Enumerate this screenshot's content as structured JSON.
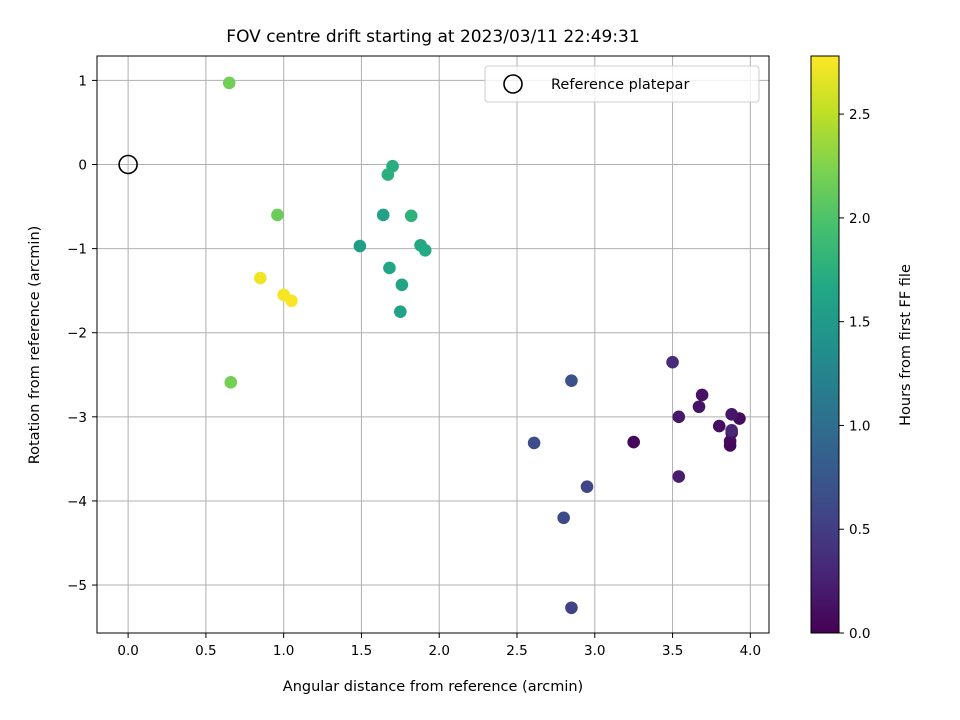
{
  "chart_data": {
    "type": "scatter",
    "title": "FOV centre drift starting at 2023/03/11 22:49:31",
    "xlabel": "Angular distance from reference (arcmin)",
    "ylabel": "Rotation from reference (arcmin)",
    "xlim": [
      -0.2,
      4.12
    ],
    "ylim": [
      -5.57,
      1.29
    ],
    "xticks": [
      0.0,
      0.5,
      1.0,
      1.5,
      2.0,
      2.5,
      3.0,
      3.5,
      4.0
    ],
    "yticks": [
      1,
      0,
      -1,
      -2,
      -3,
      -4,
      -5
    ],
    "xtick_labels": [
      "0.0",
      "0.5",
      "1.0",
      "1.5",
      "2.0",
      "2.5",
      "3.0",
      "3.5",
      "4.0"
    ],
    "ytick_labels": [
      "1",
      "0",
      "−1",
      "−2",
      "−3",
      "−4",
      "−5"
    ],
    "grid": true,
    "legend": {
      "position": "top-right",
      "label": "Reference platepar"
    },
    "reference_point": {
      "x": 0.0,
      "y": 0.0
    },
    "colorbar": {
      "label": "Hours from first FF file",
      "min": 0.0,
      "max": 2.78,
      "colormap": "viridis",
      "ticks": [
        0.0,
        0.5,
        1.0,
        1.5,
        2.0,
        2.5
      ],
      "tick_labels": [
        "0.0",
        "0.5",
        "1.0",
        "1.5",
        "2.0",
        "2.5"
      ]
    },
    "points": [
      {
        "x": 3.25,
        "y": -3.3,
        "c": 0.05
      },
      {
        "x": 3.87,
        "y": -3.34,
        "c": 0.05
      },
      {
        "x": 3.87,
        "y": -3.29,
        "c": 0.07
      },
      {
        "x": 3.93,
        "y": -3.02,
        "c": 0.08
      },
      {
        "x": 3.8,
        "y": -3.11,
        "c": 0.1
      },
      {
        "x": 3.88,
        "y": -3.19,
        "c": 0.12
      },
      {
        "x": 3.69,
        "y": -2.74,
        "c": 0.14
      },
      {
        "x": 3.67,
        "y": -2.88,
        "c": 0.15
      },
      {
        "x": 3.88,
        "y": -2.97,
        "c": 0.17
      },
      {
        "x": 3.54,
        "y": -3.0,
        "c": 0.19
      },
      {
        "x": 3.54,
        "y": -3.71,
        "c": 0.22
      },
      {
        "x": 3.88,
        "y": -3.16,
        "c": 0.3
      },
      {
        "x": 3.5,
        "y": -2.35,
        "c": 0.35
      },
      {
        "x": 2.85,
        "y": -5.27,
        "c": 0.55
      },
      {
        "x": 2.95,
        "y": -3.83,
        "c": 0.58
      },
      {
        "x": 2.8,
        "y": -4.2,
        "c": 0.62
      },
      {
        "x": 2.61,
        "y": -3.31,
        "c": 0.65
      },
      {
        "x": 2.85,
        "y": -2.57,
        "c": 0.68
      },
      {
        "x": 1.49,
        "y": -0.97,
        "c": 1.55
      },
      {
        "x": 1.64,
        "y": -0.6,
        "c": 1.58
      },
      {
        "x": 1.75,
        "y": -1.75,
        "c": 1.6
      },
      {
        "x": 1.76,
        "y": -1.43,
        "c": 1.62
      },
      {
        "x": 1.68,
        "y": -1.23,
        "c": 1.64
      },
      {
        "x": 1.88,
        "y": -0.96,
        "c": 1.66
      },
      {
        "x": 1.91,
        "y": -1.02,
        "c": 1.68
      },
      {
        "x": 1.7,
        "y": -0.02,
        "c": 1.72
      },
      {
        "x": 1.67,
        "y": -0.12,
        "c": 1.75
      },
      {
        "x": 1.82,
        "y": -0.61,
        "c": 1.78
      },
      {
        "x": 0.96,
        "y": -0.6,
        "c": 2.15
      },
      {
        "x": 0.65,
        "y": 0.97,
        "c": 2.18
      },
      {
        "x": 0.66,
        "y": -2.59,
        "c": 2.2
      },
      {
        "x": 0.85,
        "y": -1.35,
        "c": 2.72
      },
      {
        "x": 1.0,
        "y": -1.55,
        "c": 2.74
      },
      {
        "x": 1.05,
        "y": -1.62,
        "c": 2.76
      }
    ]
  }
}
